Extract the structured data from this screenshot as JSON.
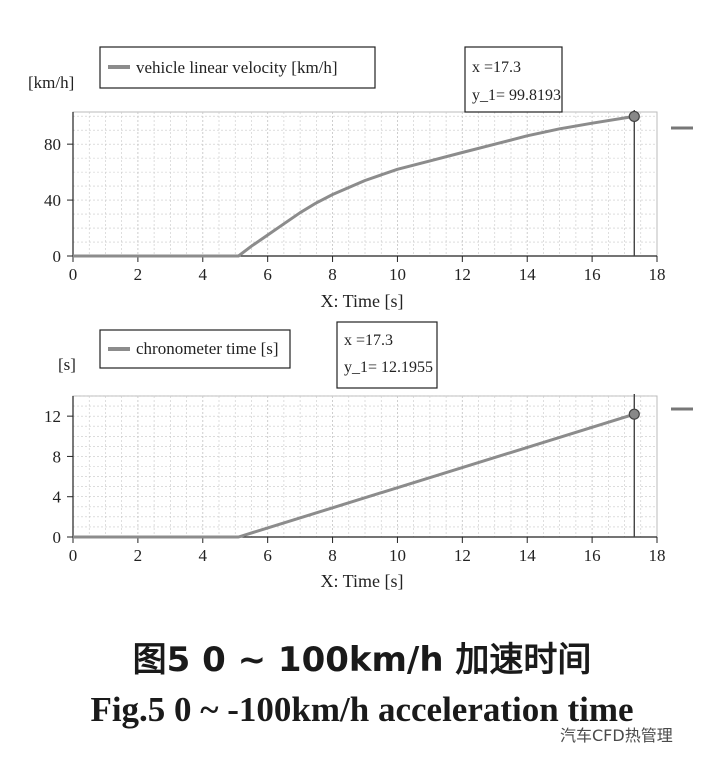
{
  "chart_data": [
    {
      "type": "line",
      "ylabel": "[km/h]",
      "xlabel": "X: Time [s]",
      "legend": "vehicle linear velocity [km/h]",
      "legend_placement": "top-left",
      "xlim": [
        0,
        18
      ],
      "ylim": [
        0,
        103
      ],
      "xticks": [
        "0",
        "2",
        "4",
        "6",
        "8",
        "10",
        "12",
        "14",
        "16",
        "18"
      ],
      "yticks": [
        "0",
        "40",
        "80"
      ],
      "grid": true,
      "cursor": {
        "x": 17.3,
        "y": 99.8193
      },
      "readout_x": "x    =17.3",
      "readout_y": "y_1= 99.8193",
      "series": [
        {
          "x": [
            0,
            5.1,
            5.5,
            6,
            6.5,
            7,
            7.5,
            8,
            9,
            10,
            11,
            12,
            13,
            14,
            15,
            16,
            17.3
          ],
          "y": [
            0,
            0,
            7,
            15,
            23,
            31,
            38,
            44,
            54,
            62,
            68,
            74,
            80,
            86,
            91,
            95,
            99.8193
          ]
        }
      ]
    },
    {
      "type": "line",
      "ylabel": "[s]",
      "xlabel": "X: Time [s]",
      "legend": "chronometer time [s]",
      "legend_placement": "top-left",
      "xlim": [
        0,
        18
      ],
      "ylim": [
        0,
        14
      ],
      "xticks": [
        "0",
        "2",
        "4",
        "6",
        "8",
        "10",
        "12",
        "14",
        "16",
        "18"
      ],
      "yticks": [
        "0",
        "4",
        "8",
        "12"
      ],
      "grid": true,
      "cursor": {
        "x": 17.3,
        "y": 12.1955
      },
      "readout_x": "x    =17.3",
      "readout_y": "y_1= 12.1955",
      "series": [
        {
          "x": [
            0,
            5.1,
            17.3
          ],
          "y": [
            0,
            0,
            12.1955
          ]
        }
      ]
    }
  ],
  "caption_cn": "图5    0 ~ 100km/h 加速时间",
  "caption_en": "Fig.5    0 ~ -100km/h acceleration time",
  "watermark": "汽车CFD热管理",
  "colors": {
    "line": "#8c8c8c",
    "grid": "#c8c8c8",
    "axis": "#222222",
    "cursor": "#444444"
  }
}
